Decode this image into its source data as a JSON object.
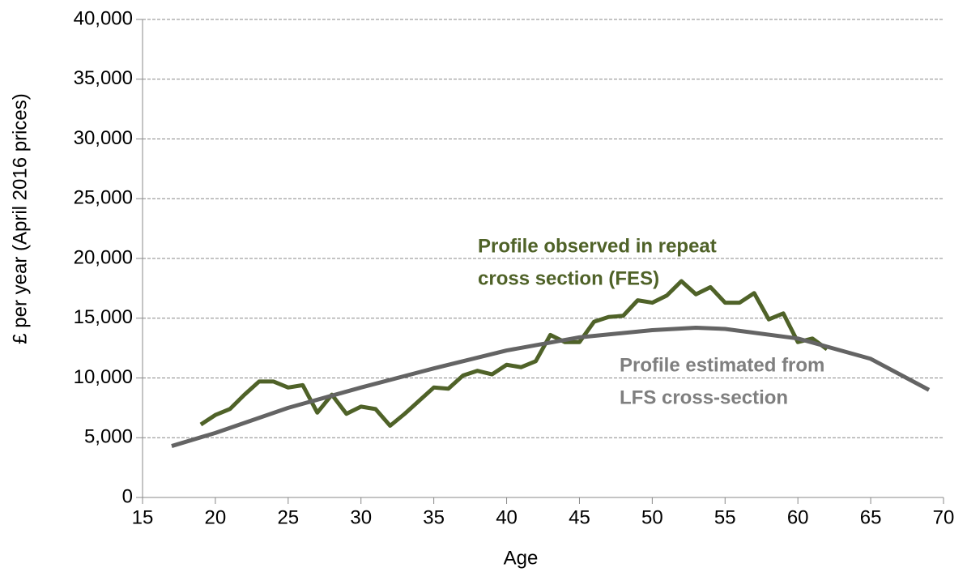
{
  "chart_data": {
    "type": "line",
    "y_label": "£ per year (April 2016 prices)",
    "x_label": "Age",
    "xlim": [
      15,
      70
    ],
    "xticks": [
      15,
      20,
      25,
      30,
      35,
      40,
      45,
      50,
      55,
      60,
      65,
      70
    ],
    "ylim": [
      0,
      40000
    ],
    "yticks": [
      0,
      {
        "value": 5000,
        "label": "5,000"
      },
      {
        "value": 10000,
        "label": "10,000"
      },
      {
        "value": 15000,
        "label": "15,000"
      },
      {
        "value": 20000,
        "label": "20,000"
      },
      {
        "value": 25000,
        "label": "25,000"
      },
      {
        "value": 30000,
        "label": "30,000"
      },
      {
        "value": 35000,
        "label": "35,000"
      },
      {
        "value": 40000,
        "label": "40,000"
      }
    ],
    "grid": true,
    "series": [
      {
        "color": "#4f6228",
        "x": [
          19,
          20,
          21,
          22,
          23,
          24,
          25,
          26,
          27,
          28,
          29,
          30,
          31,
          32,
          33,
          34,
          35,
          36,
          37,
          38,
          39,
          40,
          41,
          42,
          43,
          44,
          45,
          46,
          47,
          48,
          49,
          50,
          51,
          52,
          53,
          54,
          55,
          56,
          57,
          58,
          59,
          60,
          61,
          62
        ],
        "values": [
          6100,
          6900,
          7400,
          8600,
          9700,
          9700,
          9200,
          9400,
          7100,
          8600,
          7000,
          7600,
          7400,
          6000,
          7000,
          8100,
          9200,
          9100,
          10200,
          10600,
          10300,
          11100,
          10900,
          11400,
          13600,
          13000,
          13000,
          14700,
          15100,
          15200,
          16500,
          16300,
          16900,
          18100,
          17000,
          17600,
          16300,
          16300,
          17100,
          14900,
          15400,
          13000,
          13300,
          12400
        ]
      },
      {
        "color": "#646464",
        "x": [
          17,
          20,
          25,
          30,
          35,
          40,
          45,
          50,
          53,
          55,
          60,
          65,
          69
        ],
        "values": [
          4300,
          5400,
          7500,
          9200,
          10800,
          12300,
          13400,
          14000,
          14200,
          14100,
          13300,
          11600,
          9000
        ]
      }
    ],
    "annotations": [
      {
        "lines": [
          "Profile observed in repeat",
          "cross section (FES)"
        ],
        "color": "#4f6228"
      },
      {
        "lines": [
          "Profile estimated from",
          "LFS cross-section"
        ],
        "color": "#7f7f7f"
      }
    ]
  }
}
